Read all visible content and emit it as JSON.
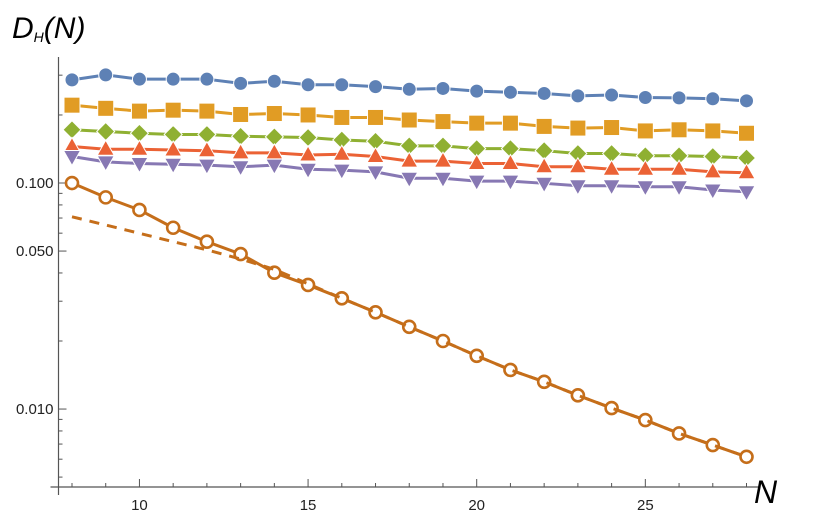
{
  "chart_data": {
    "type": "line",
    "ylabel": "D_H(N)",
    "ylabel_main": "D",
    "ylabel_sub": "H",
    "ylabel_arg": "(N)",
    "xlabel": "N",
    "yscale": "log",
    "xlim": [
      7.6,
      28.4
    ],
    "ylim": [
      0.00452,
      0.361
    ],
    "grid": false,
    "legend": "none",
    "x_ticks": [
      "10",
      "15",
      "20",
      "25"
    ],
    "x_tick_values": [
      10,
      15,
      20,
      25
    ],
    "y_ticks": [
      "0.100",
      "0.050",
      "0.010"
    ],
    "y_tick_values": [
      0.1,
      0.05,
      0.01
    ],
    "x": [
      8,
      9,
      10,
      11,
      12,
      13,
      14,
      15,
      16,
      17,
      18,
      19,
      20,
      21,
      22,
      23,
      24,
      25,
      26,
      27,
      28
    ],
    "series": [
      {
        "color": "#5E81B5",
        "marker": "circle",
        "line": "solid",
        "values": [
          0.286,
          0.301,
          0.288,
          0.288,
          0.288,
          0.276,
          0.282,
          0.272,
          0.272,
          0.267,
          0.26,
          0.262,
          0.255,
          0.252,
          0.249,
          0.243,
          0.245,
          0.239,
          0.238,
          0.236,
          0.231
        ]
      },
      {
        "color": "#E19C24",
        "marker": "square",
        "line": "solid",
        "values": [
          0.221,
          0.214,
          0.208,
          0.21,
          0.208,
          0.201,
          0.203,
          0.2,
          0.195,
          0.195,
          0.19,
          0.187,
          0.184,
          0.184,
          0.178,
          0.175,
          0.176,
          0.17,
          0.172,
          0.17,
          0.166
        ]
      },
      {
        "color": "#8FB032",
        "marker": "diamond",
        "line": "solid",
        "values": [
          0.172,
          0.169,
          0.166,
          0.164,
          0.164,
          0.161,
          0.16,
          0.159,
          0.155,
          0.153,
          0.146,
          0.146,
          0.142,
          0.142,
          0.139,
          0.135,
          0.135,
          0.132,
          0.132,
          0.131,
          0.129
        ]
      },
      {
        "color": "#EB6235",
        "marker": "triangle-up",
        "line": "solid",
        "values": [
          0.145,
          0.141,
          0.141,
          0.14,
          0.139,
          0.136,
          0.136,
          0.133,
          0.134,
          0.131,
          0.125,
          0.125,
          0.122,
          0.122,
          0.118,
          0.118,
          0.115,
          0.115,
          0.115,
          0.112,
          0.111
        ]
      },
      {
        "color": "#8778B3",
        "marker": "triangle-down",
        "line": "solid",
        "values": [
          0.131,
          0.124,
          0.122,
          0.121,
          0.12,
          0.118,
          0.12,
          0.115,
          0.114,
          0.112,
          0.105,
          0.105,
          0.102,
          0.102,
          0.0997,
          0.0973,
          0.0973,
          0.0963,
          0.0963,
          0.0931,
          0.0915
        ]
      },
      {
        "color": "#C56E1A",
        "marker": "open-circle",
        "line": "solid",
        "values": [
          0.1,
          0.0864,
          0.076,
          0.0634,
          0.055,
          0.0485,
          0.0401,
          0.0354,
          0.0309,
          0.0268,
          0.0231,
          0.02,
          0.0172,
          0.0149,
          0.0132,
          0.0115,
          0.0101,
          0.00894,
          0.0078,
          0.00693,
          0.00615
        ]
      },
      {
        "color": "#C56E1A",
        "marker": "none",
        "line": "dashed",
        "values": [
          0.0709,
          0.0652,
          0.0599,
          0.055,
          0.0506,
          0.0461,
          0.0415,
          0.0358,
          0.0309,
          0.0268,
          0.0231,
          0.02,
          0.0172,
          0.0149,
          0.0132,
          0.0115,
          0.0101,
          0.00894,
          0.0078,
          0.00693,
          0.00615
        ]
      }
    ]
  }
}
